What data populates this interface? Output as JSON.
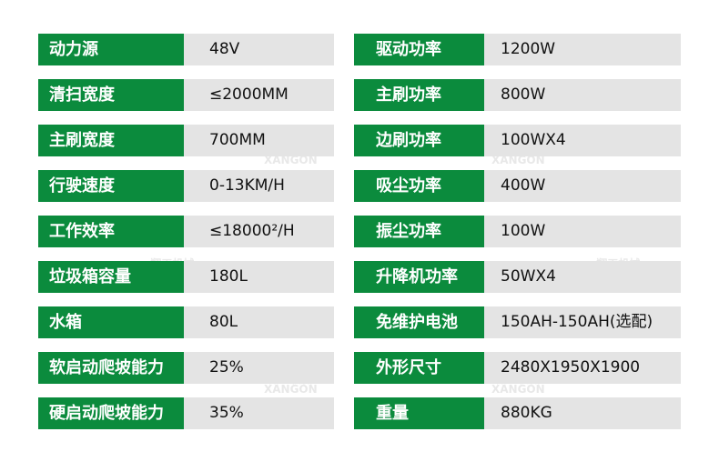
{
  "colors": {
    "label_bg": "#0b8b3d",
    "value_bg": "#e4e4e4"
  },
  "watermark": {
    "cn": "翔工机械",
    "en": "XANGON"
  },
  "left": [
    {
      "label": "动力源",
      "value": "48V"
    },
    {
      "label": "清扫宽度",
      "value": "≤2000MM"
    },
    {
      "label": "主刷宽度",
      "value": "700MM"
    },
    {
      "label": "行驶速度",
      "value": "0-13KM/H"
    },
    {
      "label": "工作效率",
      "value": "≤18000²/H"
    },
    {
      "label": "垃圾箱容量",
      "value": "180L"
    },
    {
      "label": "水箱",
      "value": "80L"
    },
    {
      "label": "软启动爬坡能力",
      "value": "25%"
    },
    {
      "label": "硬启动爬坡能力",
      "value": "35%"
    }
  ],
  "right": [
    {
      "label": "驱动功率",
      "value": "1200W"
    },
    {
      "label": "主刷功率",
      "value": "800W"
    },
    {
      "label": "边刷功率",
      "value": "100WX4"
    },
    {
      "label": "吸尘功率",
      "value": "400W"
    },
    {
      "label": "振尘功率",
      "value": "100W"
    },
    {
      "label": "升降机功率",
      "value": "50WX4"
    },
    {
      "label": "免维护电池",
      "value": "150AH-150AH(选配)"
    },
    {
      "label": "外形尺寸",
      "value": "2480X1950X1900"
    },
    {
      "label": "重量",
      "value": "880KG"
    }
  ]
}
